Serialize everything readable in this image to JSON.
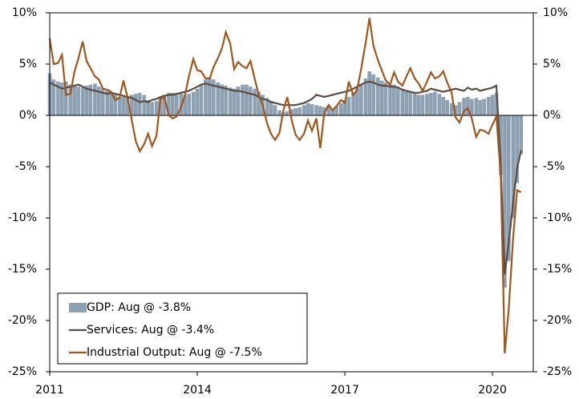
{
  "chart_data": {
    "type": "bar",
    "x": [
      2011,
      2011.08,
      2011.17,
      2011.25,
      2011.33,
      2011.42,
      2011.5,
      2011.58,
      2011.67,
      2011.75,
      2011.83,
      2011.92,
      2012,
      2012.08,
      2012.17,
      2012.25,
      2012.33,
      2012.42,
      2012.5,
      2012.58,
      2012.67,
      2012.75,
      2012.83,
      2012.92,
      2013,
      2013.08,
      2013.17,
      2013.25,
      2013.33,
      2013.42,
      2013.5,
      2013.58,
      2013.67,
      2013.75,
      2013.83,
      2013.92,
      2014,
      2014.08,
      2014.17,
      2014.25,
      2014.33,
      2014.42,
      2014.5,
      2014.58,
      2014.67,
      2014.75,
      2014.83,
      2014.92,
      2015,
      2015.08,
      2015.17,
      2015.25,
      2015.33,
      2015.42,
      2015.5,
      2015.58,
      2015.67,
      2015.75,
      2015.83,
      2015.92,
      2016,
      2016.08,
      2016.17,
      2016.25,
      2016.33,
      2016.42,
      2016.5,
      2016.58,
      2016.67,
      2016.75,
      2016.83,
      2016.92,
      2017,
      2017.08,
      2017.17,
      2017.25,
      2017.33,
      2017.42,
      2017.5,
      2017.58,
      2017.67,
      2017.75,
      2017.83,
      2017.92,
      2018,
      2018.08,
      2018.17,
      2018.25,
      2018.33,
      2018.42,
      2018.5,
      2018.58,
      2018.67,
      2018.75,
      2018.83,
      2018.92,
      2019,
      2019.08,
      2019.17,
      2019.25,
      2019.33,
      2019.42,
      2019.5,
      2019.58,
      2019.67,
      2019.75,
      2019.83,
      2019.92,
      2020,
      2020.08,
      2020.17,
      2020.25,
      2020.33,
      2020.42,
      2020.5,
      2020.58
    ],
    "series": [
      {
        "name": "GDP: Aug @ -3.8%",
        "type": "bar",
        "color": "#8ea1b2",
        "values": [
          4.1,
          3.5,
          3.3,
          3.2,
          3.3,
          3.0,
          2.9,
          2.8,
          2.7,
          2.9,
          3.0,
          3.1,
          2.8,
          2.6,
          2.4,
          2.2,
          2.0,
          1.8,
          1.8,
          1.9,
          2.0,
          2.1,
          2.2,
          2.0,
          1.5,
          1.3,
          1.4,
          1.7,
          2.0,
          2.2,
          2.2,
          2.1,
          2.2,
          2.0,
          2.1,
          2.3,
          2.6,
          3.0,
          3.5,
          3.7,
          3.5,
          3.2,
          3.0,
          2.9,
          2.7,
          2.6,
          2.8,
          3.0,
          3.0,
          2.8,
          2.6,
          2.3,
          2.0,
          1.7,
          1.4,
          1.0,
          0.5,
          0.3,
          0.4,
          0.6,
          0.7,
          0.8,
          1.0,
          1.2,
          1.1,
          1.0,
          0.9,
          0.8,
          1.0,
          0.6,
          0.9,
          1.2,
          1.5,
          1.8,
          2.2,
          2.6,
          3.0,
          3.6,
          4.3,
          4.0,
          3.7,
          3.4,
          3.2,
          3.0,
          3.0,
          2.8,
          2.6,
          2.4,
          2.3,
          2.2,
          2.0,
          2.0,
          2.1,
          2.2,
          2.3,
          2.1,
          1.8,
          1.5,
          1.2,
          1.0,
          1.3,
          1.7,
          1.8,
          1.6,
          1.7,
          1.5,
          1.6,
          1.8,
          2.0,
          2.2,
          -5.8,
          -16.8,
          -14.2,
          -10.0,
          -6.6,
          -3.8
        ]
      },
      {
        "name": "Services: Aug @ -3.4%",
        "type": "line",
        "color": "#5b4b43",
        "values": [
          3.2,
          3.0,
          2.8,
          2.6,
          2.7,
          2.8,
          2.9,
          3.0,
          2.8,
          2.6,
          2.5,
          2.4,
          2.3,
          2.2,
          2.1,
          2.2,
          2.1,
          2.0,
          1.9,
          1.8,
          1.7,
          1.5,
          1.3,
          1.4,
          1.3,
          1.5,
          1.6,
          1.8,
          1.9,
          2.0,
          2.0,
          2.1,
          2.2,
          2.3,
          2.4,
          2.6,
          2.8,
          3.0,
          3.1,
          3.0,
          2.9,
          2.8,
          2.7,
          2.6,
          2.5,
          2.4,
          2.4,
          2.3,
          2.2,
          2.1,
          2.0,
          1.8,
          1.6,
          1.5,
          1.3,
          1.2,
          1.1,
          1.0,
          1.0,
          1.0,
          1.0,
          1.1,
          1.2,
          1.4,
          1.6,
          2.0,
          1.9,
          1.8,
          1.9,
          2.0,
          2.1,
          2.2,
          2.3,
          2.4,
          2.6,
          2.8,
          3.0,
          3.2,
          3.3,
          3.2,
          3.0,
          2.9,
          2.9,
          2.8,
          2.8,
          2.7,
          2.5,
          2.4,
          2.3,
          2.2,
          2.2,
          2.3,
          2.4,
          2.6,
          2.5,
          2.4,
          2.3,
          2.4,
          2.5,
          2.6,
          2.5,
          2.4,
          2.7,
          2.5,
          2.6,
          2.4,
          2.5,
          2.6,
          2.7,
          2.9,
          -5.0,
          -15.5,
          -12.5,
          -8.5,
          -5.2,
          -3.4
        ]
      },
      {
        "name": "Industrial Output: Aug @ -7.5%",
        "type": "line",
        "color": "#a0561c",
        "values": [
          7.5,
          5.0,
          5.1,
          5.9,
          2.0,
          2.1,
          4.2,
          5.5,
          7.2,
          5.3,
          4.6,
          3.8,
          3.5,
          2.6,
          2.5,
          2.3,
          1.5,
          1.7,
          3.4,
          1.8,
          -0.5,
          -2.5,
          -3.5,
          -2.8,
          -1.8,
          -3.0,
          -2.0,
          1.6,
          1.8,
          0.0,
          -0.3,
          -0.1,
          0.8,
          2.0,
          3.8,
          5.5,
          4.4,
          4.3,
          3.6,
          3.6,
          4.7,
          5.6,
          6.5,
          8.1,
          7.0,
          4.5,
          5.2,
          4.8,
          4.6,
          5.3,
          3.5,
          2.0,
          1.0,
          -0.8,
          -1.8,
          -2.4,
          -1.7,
          0.5,
          1.8,
          -0.5,
          -1.9,
          -2.4,
          -1.8,
          -0.5,
          -1.5,
          -0.3,
          -3.2,
          0.2,
          1.0,
          0.5,
          0.9,
          1.5,
          1.2,
          3.3,
          2.0,
          2.5,
          4.5,
          7.0,
          9.5,
          6.8,
          5.4,
          4.4,
          3.4,
          3.0,
          4.2,
          3.3,
          2.9,
          3.8,
          4.6,
          3.6,
          3.1,
          2.4,
          3.3,
          4.2,
          3.6,
          3.8,
          4.3,
          3.2,
          2.2,
          -0.2,
          -0.7,
          0.4,
          0.7,
          -0.3,
          -2.1,
          -1.4,
          -1.5,
          -1.8,
          -0.9,
          -0.1,
          -6.0,
          -23.2,
          -19.0,
          -12.0,
          -7.3,
          -7.5
        ]
      }
    ],
    "xlim": [
      2011,
      2020.83
    ],
    "xticks": [
      2011,
      2014,
      2017,
      2020
    ],
    "ylim": [
      -25,
      10
    ],
    "yticks": [
      {
        "value": -25,
        "label": "-25%"
      },
      {
        "value": -20,
        "label": "-20%"
      },
      {
        "value": -15,
        "label": "-15%"
      },
      {
        "value": -10,
        "label": "-10%"
      },
      {
        "value": -5,
        "label": "-5%"
      },
      {
        "value": 0,
        "label": "0%"
      },
      {
        "value": 5,
        "label": "5%"
      },
      {
        "value": 10,
        "label": "10%"
      }
    ],
    "y2lim": [
      -25,
      10
    ],
    "y2ticks": [
      {
        "value": -25,
        "label": "-25%"
      },
      {
        "value": -20,
        "label": "-20%"
      },
      {
        "value": -15,
        "label": "-15%"
      },
      {
        "value": -10,
        "label": "-10%"
      },
      {
        "value": -5,
        "label": "-5%"
      },
      {
        "value": 0,
        "label": "0%"
      },
      {
        "value": 5,
        "label": "5%"
      },
      {
        "value": 10,
        "label": "10%"
      }
    ],
    "legend": "lower-left"
  }
}
